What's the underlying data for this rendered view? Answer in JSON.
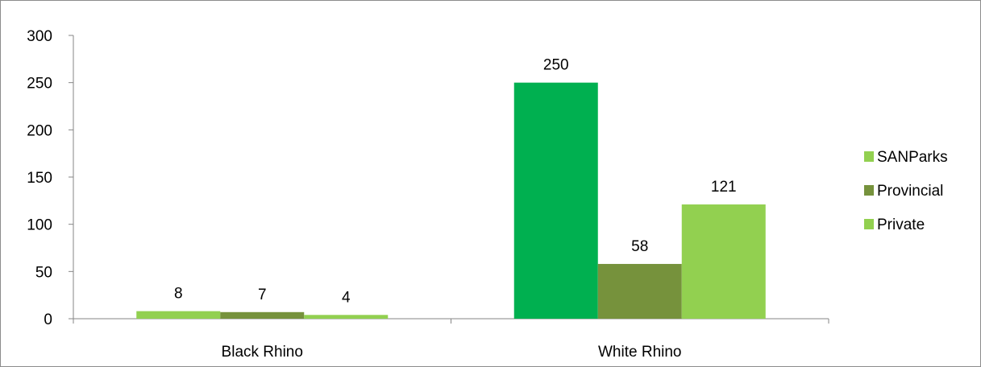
{
  "chart_data": {
    "type": "bar",
    "title": "",
    "xlabel": "",
    "ylabel": "",
    "categories": [
      "Black Rhino",
      "White Rhino"
    ],
    "series": [
      {
        "name": "SANParks",
        "values": [
          8,
          250
        ],
        "colors": [
          "#92d050",
          "#00b050"
        ]
      },
      {
        "name": "Provincial",
        "values": [
          7,
          58
        ],
        "colors": [
          "#76923c",
          "#76923c"
        ]
      },
      {
        "name": "Private",
        "values": [
          4,
          121
        ],
        "colors": [
          "#92d050",
          "#92d050"
        ]
      }
    ],
    "ylim": [
      0,
      300
    ],
    "yticks": [
      0,
      50,
      100,
      150,
      200,
      250,
      300
    ],
    "legend_position": "right",
    "legend_colors": [
      "#92d050",
      "#76923c",
      "#92d050"
    ],
    "grid": false,
    "data_labels": true
  }
}
